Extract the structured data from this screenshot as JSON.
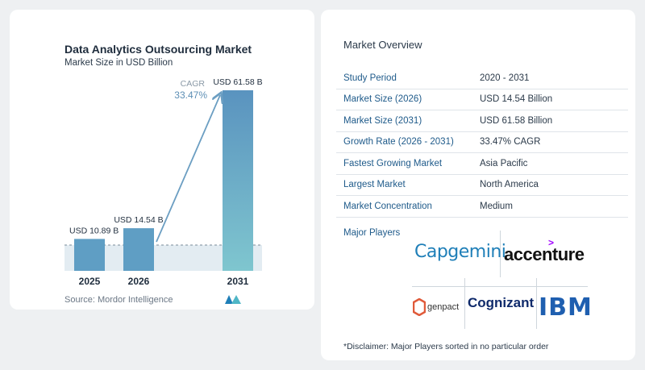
{
  "chart_data": {
    "type": "bar",
    "title": "Data Analytics Outsourcing Market",
    "subtitle": "Market Size in USD Billion",
    "categories": [
      "2025",
      "2026",
      "2031"
    ],
    "values": [
      10.89,
      14.54,
      61.58
    ],
    "value_labels": [
      "USD 10.89 B",
      "USD 14.54 B",
      "USD 61.58 B"
    ],
    "cagr_label": "CAGR",
    "cagr_value": "33.47%",
    "ylim": [
      0,
      65
    ],
    "grid": false
  },
  "source": "Source:  Mordor Intelligence",
  "colors": {
    "bar_short": "#5f9ec4",
    "bar_tall_top": "#5a93bf",
    "bar_tall_bottom": "#7fc6cf",
    "arrow": "#6b9ec2",
    "key_text": "#1e5a8a"
  },
  "overview": {
    "title": "Market Overview",
    "rows": [
      {
        "key": "Study Period",
        "value": "2020 - 2031"
      },
      {
        "key": "Market Size (2026)",
        "value": "USD 14.54 Billion"
      },
      {
        "key": "Market Size (2031)",
        "value": "USD 61.58 Billion"
      },
      {
        "key": "Growth Rate (2026 - 2031)",
        "value": "33.47% CAGR"
      },
      {
        "key": "Fastest Growing Market",
        "value": "Asia Pacific"
      },
      {
        "key": "Largest Market",
        "value": "North America"
      },
      {
        "key": "Market Concentration",
        "value": "Medium"
      }
    ],
    "players_title": "Major Players",
    "players": [
      "Capgemini",
      "accenture",
      "genpact",
      "Cognizant",
      "IBM"
    ],
    "disclaimer": "*Disclaimer: Major Players sorted in no particular order"
  }
}
